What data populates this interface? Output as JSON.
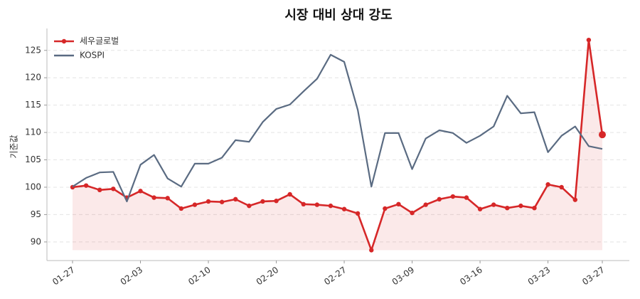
{
  "chart_data": {
    "type": "line",
    "title": "시장 대비 상대 강도",
    "y_label": "기준값",
    "categories": [
      "01-27",
      null,
      null,
      null,
      null,
      "02-03",
      null,
      null,
      null,
      null,
      "02-10",
      null,
      null,
      null,
      null,
      "02-20",
      null,
      null,
      null,
      null,
      "02-27",
      null,
      null,
      null,
      null,
      "03-09",
      null,
      null,
      null,
      null,
      "03-16",
      null,
      null,
      null,
      null,
      "03-23",
      null,
      null,
      null,
      "03-27"
    ],
    "series": [
      {
        "name": "세우글로벌",
        "color": "#d62728",
        "values": [
          100.0,
          100.3,
          99.5,
          99.7,
          98.1,
          99.3,
          98.1,
          98.0,
          96.1,
          96.8,
          97.4,
          97.3,
          97.8,
          96.6,
          97.4,
          97.5,
          98.7,
          96.9,
          96.8,
          96.6,
          96.0,
          95.2,
          88.5,
          96.1,
          96.9,
          95.3,
          96.8,
          97.8,
          98.3,
          98.1,
          96.0,
          96.8,
          96.2,
          96.6,
          96.2,
          100.5,
          100.0,
          97.7,
          126.9,
          109.6
        ]
      },
      {
        "name": "KOSPI",
        "color": "#5a6b82",
        "values": [
          100.1,
          101.7,
          102.7,
          102.8,
          97.4,
          104.1,
          105.9,
          101.6,
          100.1,
          104.3,
          104.3,
          105.4,
          108.6,
          108.3,
          111.9,
          114.3,
          115.1,
          117.5,
          119.8,
          124.2,
          122.9,
          114.1,
          100.1,
          109.9,
          109.9,
          103.3,
          108.9,
          110.4,
          109.9,
          108.1,
          109.4,
          111.1,
          116.7,
          113.5,
          113.7,
          106.4,
          109.4,
          111.1,
          107.5,
          107.0
        ]
      }
    ],
    "ylim": [
      86.6,
      129
    ],
    "yticks": [
      90,
      95,
      100,
      105,
      110,
      115,
      120,
      125
    ],
    "grid": true,
    "legend": "upper left"
  }
}
